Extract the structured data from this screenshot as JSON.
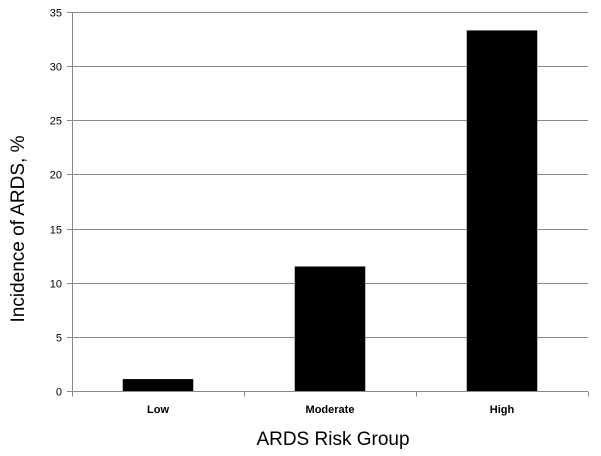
{
  "chart_data": {
    "type": "bar",
    "title": "",
    "xlabel": "ARDS Risk Group",
    "ylabel": "Incidence of ARDS, %",
    "categories": [
      "Low",
      "Moderate",
      "High"
    ],
    "values": [
      1.1,
      11.5,
      33.3
    ],
    "ylim": [
      0,
      35
    ],
    "yticks": [
      0,
      5,
      10,
      15,
      20,
      25,
      30,
      35
    ],
    "grid": true,
    "legend": "none",
    "bar_color": "#000000"
  }
}
